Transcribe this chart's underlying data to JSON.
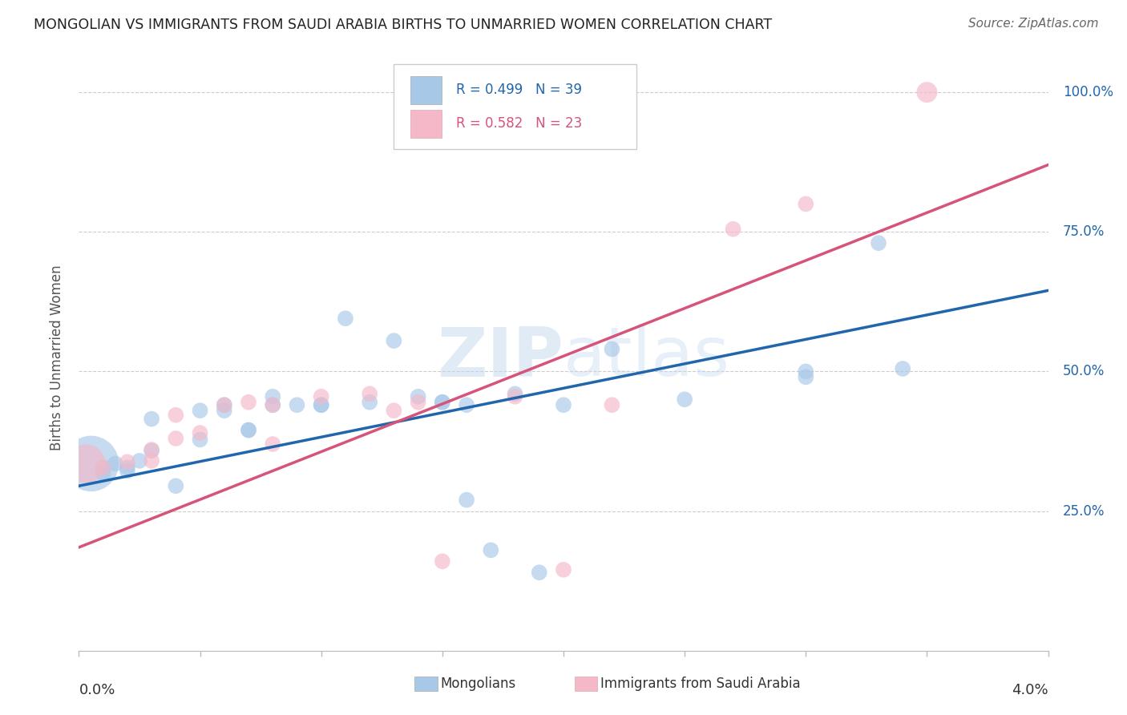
{
  "title": "MONGOLIAN VS IMMIGRANTS FROM SAUDI ARABIA BIRTHS TO UNMARRIED WOMEN CORRELATION CHART",
  "source": "Source: ZipAtlas.com",
  "ylabel": "Births to Unmarried Women",
  "legend1_text": "R = 0.499   N = 39",
  "legend2_text": "R = 0.582   N = 23",
  "legend_label1": "Mongolians",
  "legend_label2": "Immigrants from Saudi Arabia",
  "blue_color": "#a8c8e8",
  "blue_line_color": "#2166ac",
  "pink_color": "#f4b8c8",
  "pink_line_color": "#d6547a",
  "blue_scatter": [
    [
      0.0005,
      0.335
    ],
    [
      0.001,
      0.328
    ],
    [
      0.001,
      0.318
    ],
    [
      0.0015,
      0.335
    ],
    [
      0.002,
      0.328
    ],
    [
      0.002,
      0.322
    ],
    [
      0.0025,
      0.34
    ],
    [
      0.003,
      0.358
    ],
    [
      0.003,
      0.415
    ],
    [
      0.004,
      0.295
    ],
    [
      0.005,
      0.378
    ],
    [
      0.005,
      0.43
    ],
    [
      0.006,
      0.44
    ],
    [
      0.006,
      0.43
    ],
    [
      0.007,
      0.395
    ],
    [
      0.007,
      0.395
    ],
    [
      0.008,
      0.455
    ],
    [
      0.008,
      0.44
    ],
    [
      0.009,
      0.44
    ],
    [
      0.01,
      0.44
    ],
    [
      0.01,
      0.44
    ],
    [
      0.011,
      0.595
    ],
    [
      0.012,
      0.445
    ],
    [
      0.013,
      0.555
    ],
    [
      0.014,
      0.455
    ],
    [
      0.015,
      0.445
    ],
    [
      0.015,
      0.445
    ],
    [
      0.016,
      0.44
    ],
    [
      0.016,
      0.27
    ],
    [
      0.017,
      0.18
    ],
    [
      0.018,
      0.46
    ],
    [
      0.019,
      0.14
    ],
    [
      0.02,
      0.44
    ],
    [
      0.022,
      0.54
    ],
    [
      0.025,
      0.45
    ],
    [
      0.03,
      0.5
    ],
    [
      0.03,
      0.49
    ],
    [
      0.033,
      0.73
    ],
    [
      0.034,
      0.505
    ]
  ],
  "blue_sizes": [
    2500,
    200,
    200,
    200,
    200,
    200,
    200,
    200,
    200,
    200,
    200,
    200,
    200,
    200,
    200,
    200,
    200,
    200,
    200,
    200,
    200,
    200,
    200,
    200,
    200,
    200,
    200,
    200,
    200,
    200,
    200,
    200,
    200,
    200,
    200,
    200,
    200,
    200,
    200
  ],
  "pink_scatter": [
    [
      0.0003,
      0.335
    ],
    [
      0.001,
      0.328
    ],
    [
      0.002,
      0.338
    ],
    [
      0.003,
      0.34
    ],
    [
      0.003,
      0.36
    ],
    [
      0.004,
      0.38
    ],
    [
      0.004,
      0.422
    ],
    [
      0.005,
      0.39
    ],
    [
      0.006,
      0.44
    ],
    [
      0.007,
      0.445
    ],
    [
      0.008,
      0.44
    ],
    [
      0.008,
      0.37
    ],
    [
      0.01,
      0.455
    ],
    [
      0.012,
      0.46
    ],
    [
      0.013,
      0.43
    ],
    [
      0.014,
      0.445
    ],
    [
      0.015,
      0.16
    ],
    [
      0.018,
      0.455
    ],
    [
      0.02,
      0.145
    ],
    [
      0.022,
      0.44
    ],
    [
      0.027,
      0.755
    ],
    [
      0.03,
      0.8
    ],
    [
      0.035,
      1.0
    ]
  ],
  "pink_sizes": [
    1200,
    200,
    200,
    200,
    200,
    200,
    200,
    200,
    200,
    200,
    200,
    200,
    200,
    200,
    200,
    200,
    200,
    200,
    200,
    200,
    200,
    200,
    350
  ],
  "xmin": 0.0,
  "xmax": 0.04,
  "ymin": 0.0,
  "ymax": 1.05,
  "blue_line": [
    0.0,
    0.295,
    0.04,
    0.645
  ],
  "pink_line": [
    0.0,
    0.185,
    0.04,
    0.87
  ],
  "background_color": "#ffffff",
  "grid_color": "#cccccc"
}
